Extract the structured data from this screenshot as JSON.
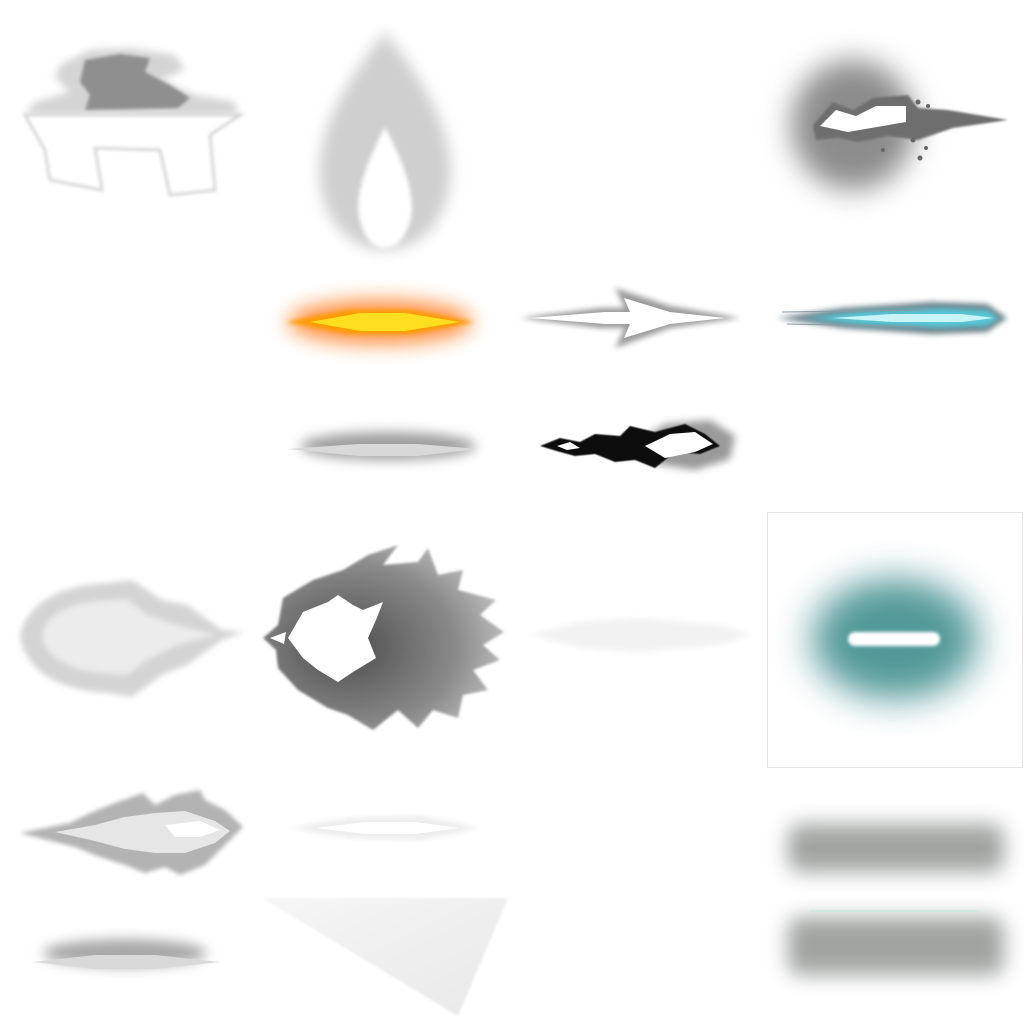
{
  "atlas": {
    "background": "#ffffff",
    "sprites": [
      {
        "name": "smoke-cloud-burst-sprite",
        "kind": "smoke",
        "color": "#8f8f8f"
      },
      {
        "name": "flame-teardrop-sprite",
        "kind": "flame",
        "color": "#bdbdbd"
      },
      {
        "name": "muzzle-flash-right-sprite",
        "kind": "muzzle-flash",
        "color": "#7a7a7a"
      },
      {
        "name": "fire-streak-sprite",
        "kind": "muzzle-flash",
        "colors": [
          "#ff6a00",
          "#ffd400",
          "#fff6a0"
        ]
      },
      {
        "name": "arrow-streak-sprite",
        "kind": "streak",
        "color": "#9a9a9a"
      },
      {
        "name": "cyan-energy-streak-sprite",
        "kind": "streak",
        "colors": [
          "#57c8d8",
          "#c9f4f8",
          "#6e7f86"
        ]
      },
      {
        "name": "grey-lens-streak-sprite",
        "kind": "streak",
        "color": "#9e9e9e"
      },
      {
        "name": "dark-flame-jet-sprite",
        "kind": "flame",
        "color": "#111111"
      },
      {
        "name": "faded-burst-sprite",
        "kind": "burst",
        "color": "#cfcfcf"
      },
      {
        "name": "spiky-burst-sprite",
        "kind": "burst",
        "color": "#7b7b7b"
      },
      {
        "name": "faint-shock-sprite",
        "kind": "burst",
        "color": "#f2f2f2"
      },
      {
        "name": "teal-glow-bar-sprite",
        "kind": "glow",
        "colors": [
          "#3e8a8a",
          "#ffffff"
        ]
      },
      {
        "name": "jagged-flash-left-sprite",
        "kind": "flash",
        "color": "#b3b3b3"
      },
      {
        "name": "faint-lens-sprite",
        "kind": "streak",
        "color": "#ececec"
      },
      {
        "name": "grey-blur-bar-top-sprite",
        "kind": "blur-bar",
        "color": "#9aa09c"
      },
      {
        "name": "grey-blur-bar-bottom-sprite",
        "kind": "blur-bar",
        "color": "#9aa09c"
      },
      {
        "name": "small-lens-streak-sprite",
        "kind": "streak",
        "color": "#a8a8a8"
      },
      {
        "name": "pale-triangle-sprite",
        "kind": "shard",
        "color": "#eeeeee"
      }
    ]
  }
}
